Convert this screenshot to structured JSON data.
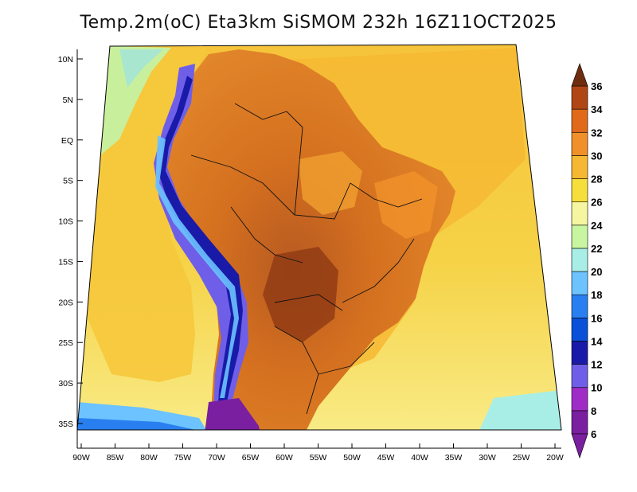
{
  "title": "Temp.2m(oC) Eta3km SiSMOM 232h 16Z11OCT2025",
  "lat_axis": {
    "labels": [
      "10N",
      "5N",
      "EQ",
      "5S",
      "10S",
      "15S",
      "20S",
      "25S",
      "30S",
      "35S"
    ],
    "values": [
      10,
      5,
      0,
      -5,
      -10,
      -15,
      -20,
      -25,
      -30,
      -35
    ]
  },
  "lon_axis": {
    "labels": [
      "90W",
      "85W",
      "80W",
      "75W",
      "70W",
      "65W",
      "60W",
      "55W",
      "50W",
      "45W",
      "40W",
      "35W",
      "30W",
      "25W",
      "20W"
    ],
    "values": [
      -90,
      -85,
      -80,
      -75,
      -70,
      -65,
      -60,
      -55,
      -50,
      -45,
      -40,
      -35,
      -30,
      -25,
      -20
    ]
  },
  "colorbar": {
    "labels": [
      "36",
      "34",
      "32",
      "30",
      "28",
      "26",
      "24",
      "22",
      "20",
      "18",
      "16",
      "14",
      "12",
      "10",
      "8",
      "6"
    ],
    "levels": [
      6,
      8,
      10,
      12,
      14,
      16,
      18,
      20,
      22,
      24,
      26,
      28,
      30,
      32,
      34,
      36
    ],
    "colors": [
      "#7a1fa0",
      "#a02cc8",
      "#6f5fe8",
      "#1a1aa8",
      "#0a50d8",
      "#2a7ff0",
      "#6cc3ff",
      "#a8eee6",
      "#c8f5a0",
      "#f6f6a0",
      "#f6df3c",
      "#f6b833",
      "#f0902a",
      "#e06a1a",
      "#b04616",
      "#6e2d10"
    ],
    "unit": "oC"
  }
}
